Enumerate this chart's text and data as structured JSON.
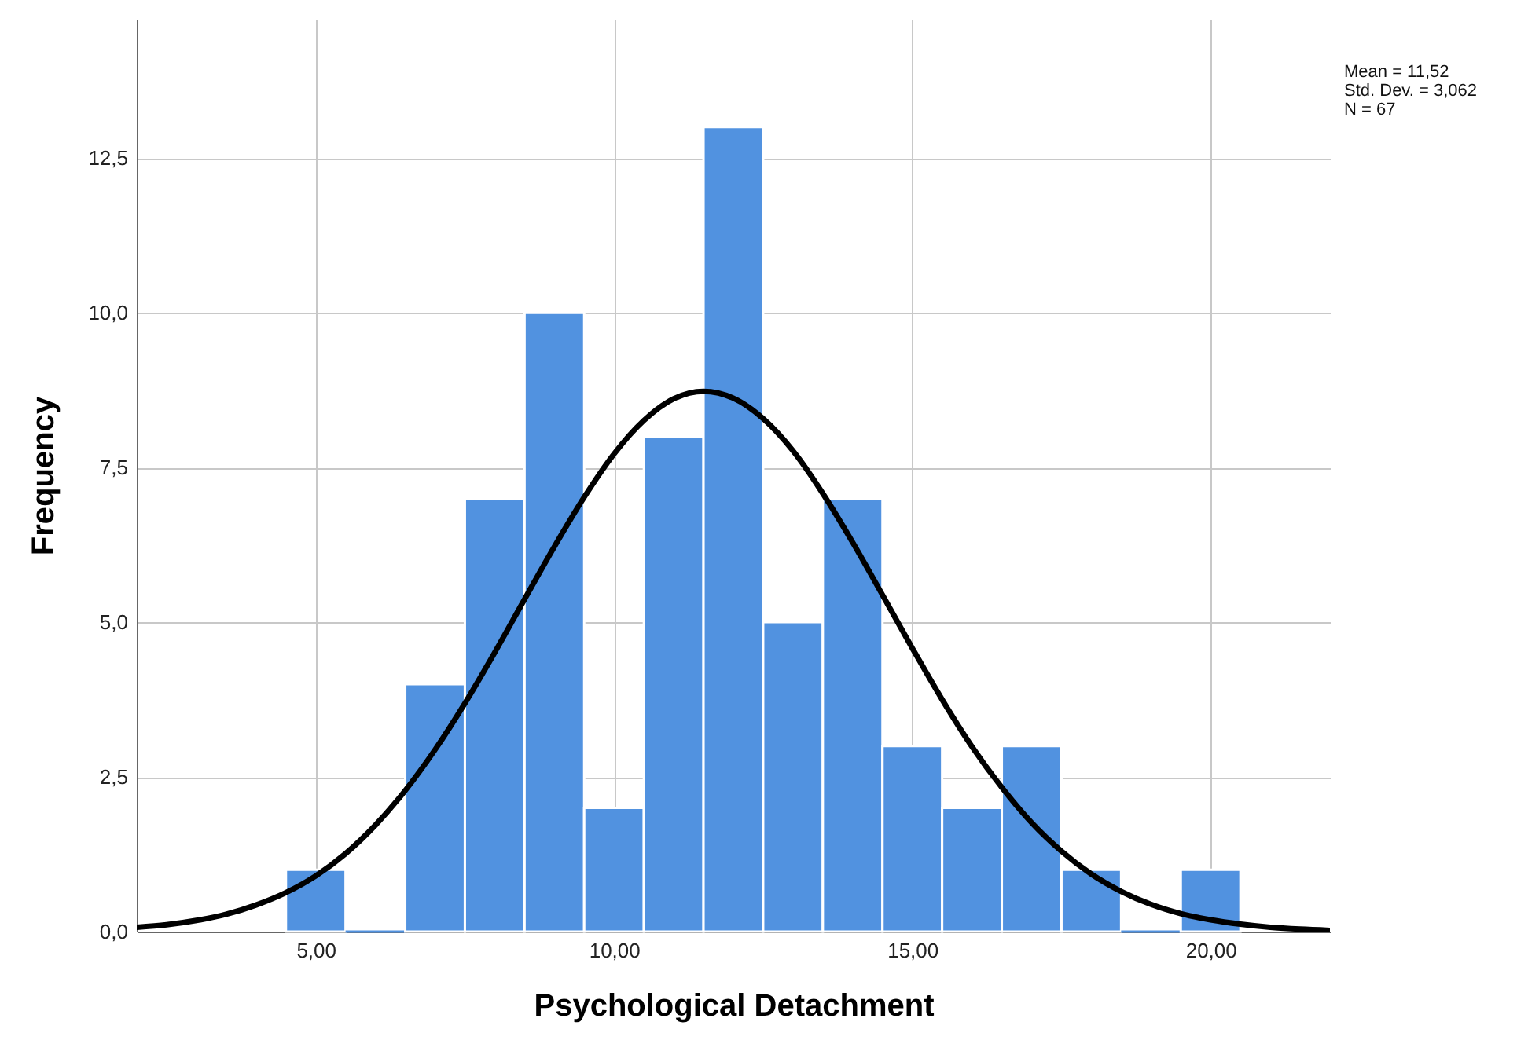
{
  "chart_data": {
    "type": "histogram",
    "xlabel": "Psychological Detachment",
    "ylabel": "Frequency",
    "series": [
      {
        "color": "#5192e0",
        "bins": [
          4.5,
          5.5,
          6.5,
          7.5,
          8.5,
          9.5,
          10.5,
          11.5,
          12.5,
          13.5,
          14.5,
          15.5,
          16.5,
          17.5,
          18.5,
          19.5,
          20.5
        ],
        "values": [
          1,
          0,
          4,
          7,
          10,
          2,
          8,
          13,
          5,
          7,
          3,
          2,
          3,
          1,
          0,
          1
        ]
      },
      {
        "type": "line",
        "color": "#000000",
        "x": [
          2,
          2.5,
          3,
          3.5,
          4,
          4.5,
          5,
          5.5,
          6,
          6.5,
          7,
          7.5,
          8,
          8.5,
          9,
          9.5,
          10,
          10.5,
          11,
          11.5,
          12,
          12.5,
          13,
          13.5,
          14,
          14.5,
          15,
          15.5,
          16,
          16.5,
          17,
          17.5,
          18,
          18.5,
          19,
          19.5,
          20,
          20.5,
          21,
          21.5,
          22
        ],
        "values": [
          0.07,
          0.11,
          0.18,
          0.28,
          0.43,
          0.63,
          0.9,
          1.26,
          1.72,
          2.28,
          2.94,
          3.69,
          4.51,
          5.37,
          6.22,
          7.02,
          7.72,
          8.26,
          8.61,
          8.73,
          8.62,
          8.29,
          7.77,
          7.08,
          6.29,
          5.44,
          4.58,
          3.75,
          2.99,
          2.33,
          1.76,
          1.3,
          0.93,
          0.65,
          0.44,
          0.29,
          0.19,
          0.12,
          0.07,
          0.04,
          0.02
        ]
      }
    ],
    "xlim": [
      2,
      22
    ],
    "ylim": [
      0,
      14.75
    ],
    "xticks": [
      {
        "value": 5,
        "label": "5,00"
      },
      {
        "value": 10,
        "label": "10,00"
      },
      {
        "value": 15,
        "label": "15,00"
      },
      {
        "value": 20,
        "label": "20,00"
      }
    ],
    "yticks": [
      {
        "value": 0,
        "label": "0,0"
      },
      {
        "value": 2.5,
        "label": "2,5"
      },
      {
        "value": 5,
        "label": "5,0"
      },
      {
        "value": 7.5,
        "label": "7,5"
      },
      {
        "value": 10,
        "label": "10,0"
      },
      {
        "value": 12.5,
        "label": "12,5"
      }
    ],
    "grid": true,
    "annotations": [
      "Mean = 11,52",
      "Std. Dev. = 3,062",
      "N = 67"
    ]
  }
}
